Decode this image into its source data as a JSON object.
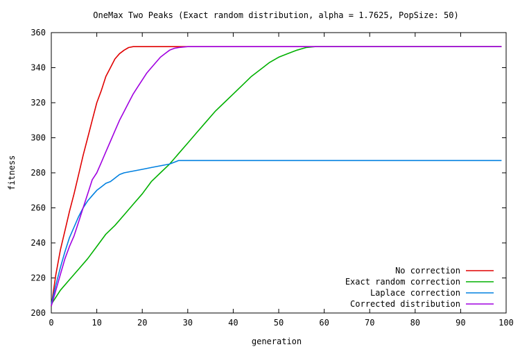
{
  "chart_data": {
    "type": "line",
    "title": "OneMax Two Peaks (Exact random distribution, alpha = 1.7625, PopSize: 50)",
    "xlabel": "generation",
    "ylabel": "fitness",
    "xlim": [
      0,
      100
    ],
    "ylim": [
      200,
      360
    ],
    "xticks": [
      "0",
      "10",
      "20",
      "30",
      "40",
      "50",
      "60",
      "70",
      "80",
      "90",
      "100"
    ],
    "yticks": [
      "200",
      "220",
      "240",
      "260",
      "280",
      "300",
      "320",
      "340",
      "360"
    ],
    "grid": false,
    "legend": "bottom-right",
    "series": [
      {
        "name": "No correction",
        "color": "#e00000",
        "points": [
          [
            0,
            204
          ],
          [
            1,
            222
          ],
          [
            2,
            236
          ],
          [
            3,
            247
          ],
          [
            4,
            258
          ],
          [
            5,
            268
          ],
          [
            6,
            279
          ],
          [
            7,
            290
          ],
          [
            8,
            300
          ],
          [
            9,
            310
          ],
          [
            10,
            320
          ],
          [
            11,
            327
          ],
          [
            12,
            335
          ],
          [
            13,
            340
          ],
          [
            14,
            345
          ],
          [
            15,
            348
          ],
          [
            16,
            350
          ],
          [
            17,
            351.5
          ],
          [
            18,
            352
          ],
          [
            20,
            352
          ],
          [
            25,
            352
          ],
          [
            30,
            352
          ],
          [
            99,
            352
          ]
        ]
      },
      {
        "name": "Exact random correction",
        "color": "#00b000",
        "points": [
          [
            0,
            205
          ],
          [
            2,
            213
          ],
          [
            4,
            219
          ],
          [
            6,
            225
          ],
          [
            8,
            231
          ],
          [
            10,
            238
          ],
          [
            12,
            245
          ],
          [
            14,
            250
          ],
          [
            16,
            256
          ],
          [
            18,
            262
          ],
          [
            20,
            268
          ],
          [
            22,
            275
          ],
          [
            24,
            280
          ],
          [
            26,
            285
          ],
          [
            28,
            291
          ],
          [
            30,
            297
          ],
          [
            32,
            303
          ],
          [
            34,
            309
          ],
          [
            36,
            315
          ],
          [
            38,
            320
          ],
          [
            40,
            325
          ],
          [
            42,
            330
          ],
          [
            44,
            335
          ],
          [
            46,
            339
          ],
          [
            48,
            343
          ],
          [
            50,
            346
          ],
          [
            52,
            348
          ],
          [
            54,
            350
          ],
          [
            56,
            351.5
          ],
          [
            58,
            352
          ],
          [
            60,
            352
          ],
          [
            99,
            352
          ]
        ]
      },
      {
        "name": "Laplace correction",
        "color": "#0080e0",
        "points": [
          [
            0,
            205
          ],
          [
            1,
            216
          ],
          [
            2,
            226
          ],
          [
            3,
            235
          ],
          [
            4,
            243
          ],
          [
            5,
            249
          ],
          [
            6,
            255
          ],
          [
            7,
            260
          ],
          [
            8,
            264
          ],
          [
            9,
            267
          ],
          [
            10,
            270
          ],
          [
            11,
            272
          ],
          [
            12,
            274
          ],
          [
            13,
            275
          ],
          [
            14,
            277
          ],
          [
            15,
            279
          ],
          [
            16,
            280
          ],
          [
            18,
            281
          ],
          [
            20,
            282
          ],
          [
            22,
            283
          ],
          [
            24,
            284
          ],
          [
            26,
            285
          ],
          [
            27,
            286
          ],
          [
            28,
            287
          ],
          [
            30,
            287
          ],
          [
            99,
            287
          ]
        ]
      },
      {
        "name": "Corrected distribution",
        "color": "#a000e0",
        "points": [
          [
            0,
            204
          ],
          [
            1,
            213
          ],
          [
            2,
            222
          ],
          [
            3,
            231
          ],
          [
            4,
            238
          ],
          [
            5,
            244
          ],
          [
            6,
            252
          ],
          [
            7,
            260
          ],
          [
            8,
            268
          ],
          [
            9,
            276
          ],
          [
            10,
            280
          ],
          [
            11,
            286
          ],
          [
            12,
            292
          ],
          [
            13,
            298
          ],
          [
            14,
            304
          ],
          [
            15,
            310
          ],
          [
            16,
            315
          ],
          [
            17,
            320
          ],
          [
            18,
            325
          ],
          [
            19,
            329
          ],
          [
            20,
            333
          ],
          [
            21,
            337
          ],
          [
            22,
            340
          ],
          [
            23,
            343
          ],
          [
            24,
            346
          ],
          [
            25,
            348
          ],
          [
            26,
            350
          ],
          [
            27,
            351
          ],
          [
            28,
            351.5
          ],
          [
            30,
            352
          ],
          [
            40,
            352
          ],
          [
            99,
            352
          ]
        ]
      }
    ]
  }
}
